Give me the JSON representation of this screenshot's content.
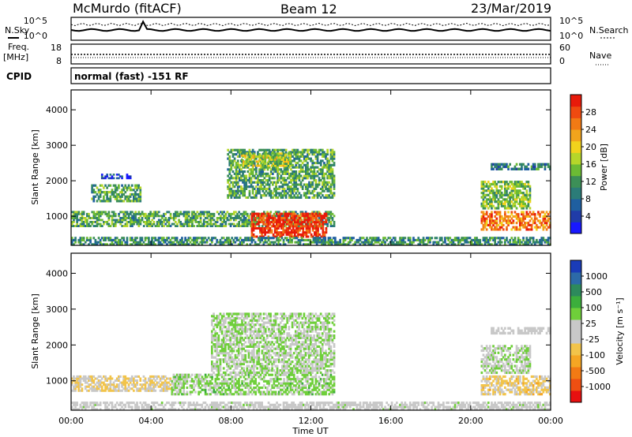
{
  "header": {
    "station": "McMurdo (fitACF)",
    "beam": "Beam 12",
    "date": "23/Mar/2019"
  },
  "strip_panels": {
    "nsky_label": "N.Sky",
    "nsearch_label": "N.Search",
    "noise_left_ticks": [
      "10^5",
      "10^0"
    ],
    "noise_right_ticks": [
      "10^5",
      "10^0"
    ],
    "freq_label": "Freq.",
    "freq_unit": "[MHz]",
    "freq_ticks": [
      "18",
      "8"
    ],
    "nave_label": "Nave",
    "nave_ticks": [
      "60",
      "0"
    ],
    "cpid_label": "CPID",
    "cpid_text": "normal (fast) -151 RF"
  },
  "colors": {
    "power_scale": [
      "#1818ff",
      "#203ca8",
      "#1f5fa0",
      "#2b7c78",
      "#3c8f57",
      "#6cbb34",
      "#b6d62a",
      "#f2d21c",
      "#f2a41c",
      "#f27a14",
      "#ef4a10",
      "#e81a0a"
    ],
    "velocity_scale": [
      "#e81010",
      "#ef4f12",
      "#f27a14",
      "#f5a623",
      "#f2c44a",
      "#c8c8c8",
      "#c8c8c8",
      "#6fcf3a",
      "#3cae3c",
      "#2d8a5c",
      "#2c6aa8",
      "#1a3cb8"
    ]
  },
  "chart_data": [
    {
      "type": "heatmap",
      "name": "power",
      "xlabel": "",
      "ylabel": "Slant Range [km]",
      "y_ticks": [
        "1000",
        "2000",
        "3000",
        "4000"
      ],
      "ylim": [
        180,
        4560
      ],
      "colorbar": {
        "label": "Power [dB]",
        "ticks": [
          "4",
          "8",
          "12",
          "16",
          "20",
          "24",
          "28"
        ],
        "range": [
          0,
          30
        ]
      },
      "echo_regions": [
        {
          "t0": 0.0,
          "t1": 13.2,
          "r0": 700,
          "r1": 1150,
          "value": 12
        },
        {
          "t0": 9.0,
          "t1": 12.8,
          "r0": 400,
          "r1": 1100,
          "value": 28
        },
        {
          "t0": 1.0,
          "t1": 3.5,
          "r0": 1400,
          "r1": 1900,
          "value": 12
        },
        {
          "t0": 7.8,
          "t1": 13.2,
          "r0": 1500,
          "r1": 2900,
          "value": 12
        },
        {
          "t0": 8.5,
          "t1": 11.0,
          "r0": 2400,
          "r1": 2800,
          "value": 16
        },
        {
          "t0": 1.5,
          "t1": 3.0,
          "r0": 2050,
          "r1": 2200,
          "value": 4
        },
        {
          "t0": 20.5,
          "t1": 24.0,
          "r0": 600,
          "r1": 1150,
          "value": 24
        },
        {
          "t0": 20.5,
          "t1": 23.0,
          "r0": 1200,
          "r1": 2000,
          "value": 14
        },
        {
          "t0": 21.0,
          "t1": 24.0,
          "r0": 2300,
          "r1": 2500,
          "value": 8
        },
        {
          "t0": 0.0,
          "t1": 24.0,
          "r0": 180,
          "r1": 420,
          "value": 10
        }
      ]
    },
    {
      "type": "heatmap",
      "name": "velocity",
      "xlabel": "Time UT",
      "ylabel": "Slant Range [km]",
      "x_ticks": [
        "00:00",
        "04:00",
        "08:00",
        "12:00",
        "16:00",
        "20:00",
        "00:00"
      ],
      "y_ticks": [
        "1000",
        "2000",
        "3000",
        "4000"
      ],
      "ylim": [
        180,
        4560
      ],
      "colorbar": {
        "label": "Velocity [m s⁻¹]",
        "ticks": [
          "1000",
          "500",
          "100",
          "25",
          "-25",
          "-100",
          "-500",
          "-1000"
        ],
        "range": [
          -1000,
          1000
        ]
      },
      "echo_regions": [
        {
          "t0": 0.0,
          "t1": 5.0,
          "r0": 700,
          "r1": 1150,
          "value": -150
        },
        {
          "t0": 5.0,
          "t1": 13.2,
          "r0": 600,
          "r1": 1200,
          "value": 200
        },
        {
          "t0": 7.0,
          "t1": 13.2,
          "r0": 1200,
          "r1": 2900,
          "value": 150
        },
        {
          "t0": 20.5,
          "t1": 24.0,
          "r0": 600,
          "r1": 1150,
          "value": -200
        },
        {
          "t0": 20.5,
          "t1": 23.0,
          "r0": 1200,
          "r1": 2000,
          "value": 120
        },
        {
          "t0": 21.0,
          "t1": 24.0,
          "r0": 2300,
          "r1": 2500,
          "value": 0
        },
        {
          "t0": 0.0,
          "t1": 24.0,
          "r0": 180,
          "r1": 420,
          "value": 30
        }
      ]
    }
  ]
}
